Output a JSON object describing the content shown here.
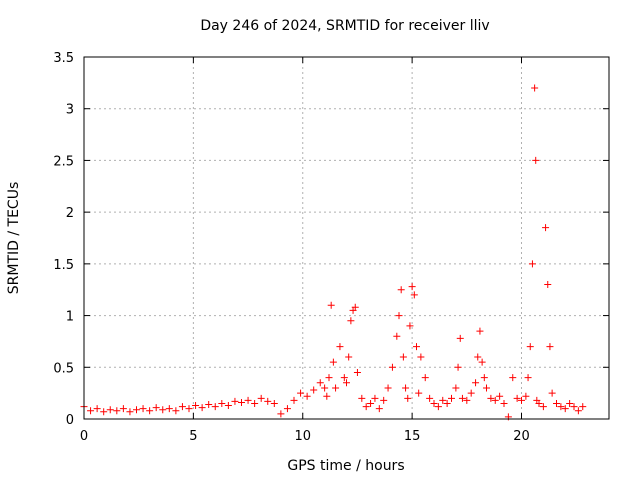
{
  "chart_data": {
    "type": "scatter",
    "title": "Day 246 of 2024, SRMTID for receiver lliv",
    "xlabel": "GPS time / hours",
    "ylabel": "SRMTID / TECUs",
    "xlim": [
      0,
      24
    ],
    "ylim": [
      0,
      3.5
    ],
    "grid": true,
    "xticks": [
      0,
      5,
      10,
      15,
      20
    ],
    "xtick_labels": [
      "0",
      "5",
      "10",
      "15",
      "20"
    ],
    "yticks": [
      0,
      0.5,
      1,
      1.5,
      2,
      2.5,
      3,
      3.5
    ],
    "ytick_labels": [
      "0",
      "0.5",
      "1",
      "1.5",
      "2",
      "2.5",
      "3",
      "3.5"
    ],
    "marker": "+",
    "marker_color": "#ff0000",
    "series": [
      {
        "name": "SRMTID",
        "x": [
          0.0,
          0.3,
          0.6,
          0.9,
          1.2,
          1.5,
          1.8,
          2.1,
          2.4,
          2.7,
          3.0,
          3.3,
          3.6,
          3.9,
          4.2,
          4.5,
          4.8,
          5.1,
          5.4,
          5.7,
          6.0,
          6.3,
          6.6,
          6.9,
          7.2,
          7.5,
          7.8,
          8.1,
          8.4,
          8.7,
          9.0,
          9.3,
          9.6,
          9.9,
          10.2,
          10.5,
          10.8,
          11.0,
          11.1,
          11.2,
          11.3,
          11.4,
          11.5,
          11.7,
          11.9,
          12.0,
          12.1,
          12.2,
          12.3,
          12.4,
          12.5,
          12.7,
          12.9,
          13.1,
          13.3,
          13.5,
          13.7,
          13.9,
          14.1,
          14.3,
          14.4,
          14.5,
          14.6,
          14.7,
          14.8,
          14.9,
          15.0,
          15.1,
          15.2,
          15.3,
          15.4,
          15.6,
          15.8,
          16.0,
          16.2,
          16.4,
          16.6,
          16.8,
          17.0,
          17.1,
          17.2,
          17.3,
          17.5,
          17.7,
          17.9,
          18.0,
          18.1,
          18.2,
          18.3,
          18.4,
          18.6,
          18.8,
          19.0,
          19.2,
          19.4,
          19.6,
          19.8,
          20.0,
          20.2,
          20.3,
          20.4,
          20.5,
          20.6,
          20.65,
          20.7,
          20.8,
          21.0,
          21.1,
          21.2,
          21.3,
          21.4,
          21.6,
          21.8,
          22.0,
          22.2,
          22.4,
          22.6,
          22.8
        ],
        "values": [
          0.12,
          0.08,
          0.1,
          0.07,
          0.09,
          0.08,
          0.1,
          0.07,
          0.09,
          0.1,
          0.08,
          0.11,
          0.09,
          0.1,
          0.08,
          0.12,
          0.1,
          0.13,
          0.11,
          0.14,
          0.12,
          0.15,
          0.13,
          0.17,
          0.16,
          0.18,
          0.15,
          0.2,
          0.17,
          0.15,
          0.05,
          0.1,
          0.18,
          0.25,
          0.22,
          0.28,
          0.35,
          0.3,
          0.22,
          0.4,
          1.1,
          0.55,
          0.3,
          0.7,
          0.4,
          0.35,
          0.6,
          0.95,
          1.05,
          1.08,
          0.45,
          0.2,
          0.12,
          0.15,
          0.2,
          0.1,
          0.18,
          0.3,
          0.5,
          0.8,
          1.0,
          1.25,
          0.6,
          0.3,
          0.2,
          0.9,
          1.28,
          1.2,
          0.7,
          0.25,
          0.6,
          0.4,
          0.2,
          0.15,
          0.12,
          0.18,
          0.15,
          0.2,
          0.3,
          0.5,
          0.78,
          0.2,
          0.18,
          0.25,
          0.35,
          0.6,
          0.85,
          0.55,
          0.4,
          0.3,
          0.2,
          0.18,
          0.22,
          0.15,
          0.02,
          0.4,
          0.2,
          0.18,
          0.22,
          0.4,
          0.7,
          1.5,
          3.2,
          2.5,
          0.18,
          0.15,
          0.12,
          1.85,
          1.3,
          0.7,
          0.25,
          0.15,
          0.12,
          0.1,
          0.15,
          0.12,
          0.08,
          0.12
        ]
      }
    ]
  }
}
